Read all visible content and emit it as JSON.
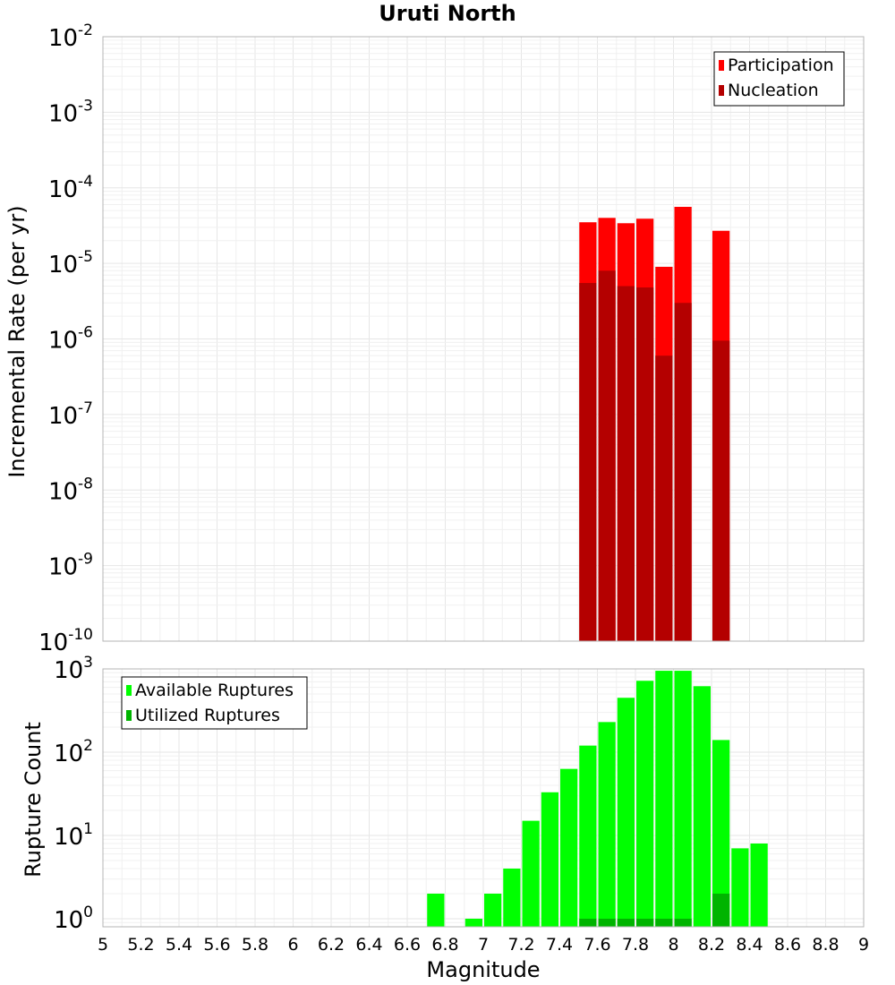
{
  "chart_data": [
    {
      "type": "bar",
      "title": "Uruti North",
      "xlabel": "",
      "ylabel": "Incremental Rate (per yr)",
      "log_y": true,
      "xlim": [
        5,
        9
      ],
      "ylim": [
        1e-10,
        0.01
      ],
      "y_ticks": [
        {
          "base": "10",
          "exp": "-10"
        },
        {
          "base": "10",
          "exp": "-9"
        },
        {
          "base": "10",
          "exp": "-8"
        },
        {
          "base": "10",
          "exp": "-7"
        },
        {
          "base": "10",
          "exp": "-6"
        },
        {
          "base": "10",
          "exp": "-5"
        },
        {
          "base": "10",
          "exp": "-4"
        },
        {
          "base": "10",
          "exp": "-3"
        },
        {
          "base": "10",
          "exp": "-2"
        }
      ],
      "grid": true,
      "legend_position": "top-right",
      "bar_width": 0.1,
      "x": [
        7.55,
        7.65,
        7.75,
        7.85,
        7.95,
        8.05,
        8.25
      ],
      "series": [
        {
          "name": "Participation",
          "color": "#ff0000",
          "values": [
            3.5e-05,
            4e-05,
            3.4e-05,
            3.9e-05,
            9e-06,
            5.6e-05,
            2.7e-05
          ]
        },
        {
          "name": "Nucleation",
          "color": "#b40000",
          "values": [
            5.5e-06,
            8e-06,
            5e-06,
            4.8e-06,
            6e-07,
            3e-06,
            9.5e-07
          ]
        }
      ]
    },
    {
      "type": "bar",
      "xlabel": "Magnitude",
      "ylabel": "Rupture Count",
      "log_y": true,
      "xlim": [
        5,
        9
      ],
      "ylim": [
        0.8,
        1000
      ],
      "x_ticks": [
        "5",
        "5.2",
        "5.4",
        "5.6",
        "5.8",
        "6",
        "6.2",
        "6.4",
        "6.6",
        "6.8",
        "7",
        "7.2",
        "7.4",
        "7.6",
        "7.8",
        "8",
        "8.2",
        "8.4",
        "8.6",
        "8.8",
        "9"
      ],
      "y_ticks": [
        {
          "base": "10",
          "exp": "0"
        },
        {
          "base": "10",
          "exp": "1"
        },
        {
          "base": "10",
          "exp": "2"
        },
        {
          "base": "10",
          "exp": "3"
        }
      ],
      "grid": true,
      "legend_position": "top-left",
      "bar_width": 0.1,
      "series": [
        {
          "name": "Available Ruptures",
          "color": "#00ff00",
          "x": [
            6.75,
            6.95,
            7.05,
            7.15,
            7.25,
            7.35,
            7.45,
            7.55,
            7.65,
            7.75,
            7.85,
            7.95,
            8.05,
            8.15,
            8.25,
            8.35,
            8.45
          ],
          "values": [
            2,
            1,
            2,
            4,
            15,
            33,
            63,
            120,
            230,
            450,
            720,
            950,
            950,
            620,
            140,
            7,
            8
          ]
        },
        {
          "name": "Utilized Ruptures",
          "color": "#00b400",
          "x": [
            7.55,
            7.65,
            7.75,
            7.85,
            7.95,
            8.05,
            8.25
          ],
          "values": [
            1,
            1,
            1,
            1,
            1,
            1,
            2
          ]
        }
      ]
    }
  ]
}
